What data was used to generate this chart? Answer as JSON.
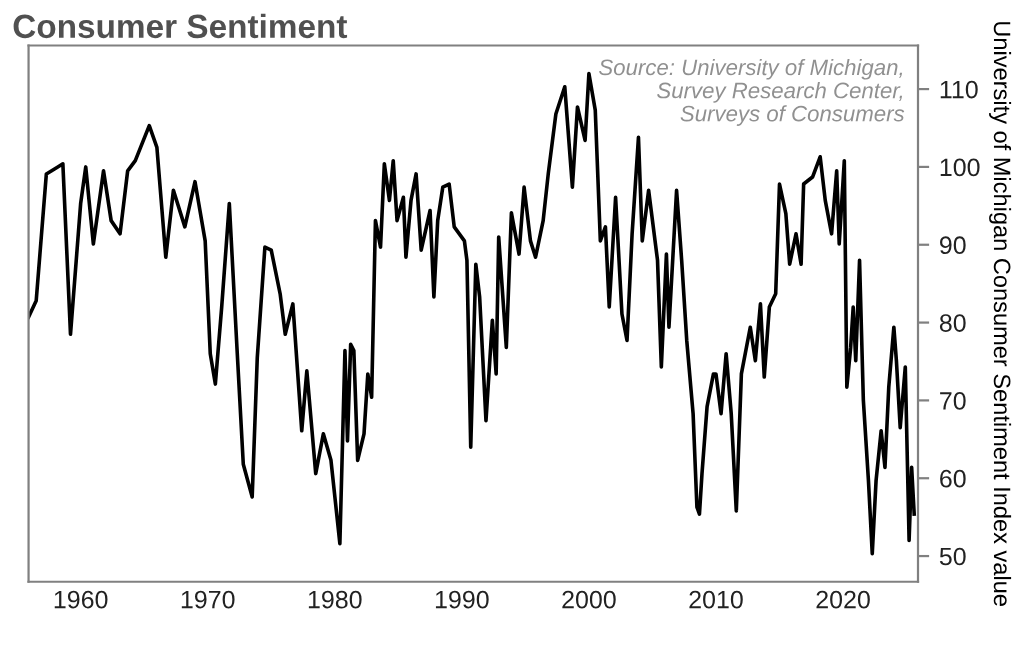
{
  "chart_data": {
    "type": "line",
    "title": "Consumer Sentiment",
    "ylabel": "University of Michigan Consumer Sentiment Index value",
    "annotations": [
      "Source: University of Michigan,\nSurvey Research Center,\nSurveys of Consumers"
    ],
    "x": [
      1955.9,
      1956.5,
      1957.3,
      1958.2,
      1958.6,
      1959.2,
      1960,
      1960.4,
      1961,
      1961.8,
      1962.4,
      1963.1,
      1963.7,
      1964.3,
      1965.4,
      1966,
      1966.7,
      1967.3,
      1968.2,
      1969,
      1969.8,
      1970.2,
      1970.6,
      1971.1,
      1971.7,
      1972.3,
      1972.8,
      1973.5,
      1973.9,
      1974.5,
      1975,
      1975.7,
      1976.1,
      1976.7,
      1977.4,
      1977.8,
      1978.5,
      1979.1,
      1979.7,
      1980.4,
      1980.8,
      1981,
      1981.25,
      1981.5,
      1981.8,
      1982.3,
      1982.6,
      1982.9,
      1983.2,
      1983.6,
      1983.9,
      1984.3,
      1984.6,
      1984.9,
      1985.4,
      1985.6,
      1986,
      1986.4,
      1986.8,
      1987.5,
      1987.8,
      1988.1,
      1988.5,
      1989,
      1989.4,
      1989.8,
      1990.2,
      1990.4,
      1990.7,
      1991.1,
      1991.4,
      1991.9,
      1992.4,
      1992.7,
      1992.9,
      1993.5,
      1993.9,
      1994.5,
      1994.9,
      1995.4,
      1995.8,
      1996.4,
      1996.8,
      1997.4,
      1998.1,
      1998.7,
      1999.1,
      1999.7,
      2000,
      2000.5,
      2000.9,
      2001.3,
      2001.6,
      2002.1,
      2002.6,
      2003,
      2003.4,
      2003.9,
      2004.2,
      2004.7,
      2005.4,
      2005.7,
      2006.1,
      2006.3,
      2006.9,
      2007.3,
      2007.7,
      2008.2,
      2008.5,
      2008.7,
      2008.9,
      2009.3,
      2009.8,
      2010,
      2010.4,
      2010.8,
      2011.2,
      2011.6,
      2012,
      2012.7,
      2013.1,
      2013.5,
      2013.8,
      2014.2,
      2014.7,
      2015,
      2015.5,
      2015.8,
      2016.3,
      2016.7,
      2016.9,
      2017.6,
      2018.2,
      2018.6,
      2019.1,
      2019.5,
      2019.7,
      2020.1,
      2020.3,
      2020.6,
      2020.8,
      2021,
      2021.3,
      2021.6,
      2022,
      2022.3,
      2022.6,
      2023,
      2023.3,
      2023.6,
      2024,
      2024.2,
      2024.5,
      2024.9,
      2025.2,
      2025.4,
      2025.6
    ],
    "series": [
      {
        "color": "#000000",
        "values": [
          80.7,
          82.8,
          99.1,
          100,
          100.4,
          78.5,
          95.3,
          100,
          90.1,
          99.5,
          93.1,
          91.4,
          99.5,
          100.8,
          105.3,
          102.5,
          88.4,
          97,
          92.3,
          98.1,
          90.5,
          76,
          72.1,
          82,
          95.3,
          76.8,
          61.8,
          57.6,
          75.5,
          89.7,
          89.3,
          83.7,
          78.5,
          82.4,
          66.1,
          73.8,
          60.6,
          65.7,
          62.3,
          51.6,
          76.4,
          64.8,
          77.2,
          76.4,
          62.3,
          65.7,
          73.4,
          70.4,
          93.1,
          89.7,
          100.4,
          95.7,
          100.8,
          93.1,
          96.1,
          88.4,
          95.7,
          99.1,
          89.3,
          94.4,
          83.3,
          93.1,
          97.4,
          97.8,
          92.3,
          91.4,
          90.5,
          88,
          64,
          87.5,
          83.3,
          67.4,
          80.3,
          73.4,
          91,
          76.8,
          94.1,
          88.8,
          97.4,
          90.5,
          88.4,
          93.1,
          99.1,
          106.8,
          110.3,
          97.4,
          107.7,
          103.4,
          112,
          107.3,
          90.5,
          92.3,
          82,
          96.1,
          81.1,
          77.7,
          91.4,
          103.8,
          90.5,
          97,
          88,
          74.3,
          88.8,
          79.4,
          97,
          88,
          77.7,
          68.3,
          56.3,
          55.4,
          60.6,
          69.2,
          73.4,
          73.4,
          68.3,
          76,
          68.3,
          55.8,
          73.4,
          79.4,
          75.1,
          82.4,
          73,
          82,
          83.7,
          97.8,
          94,
          87.5,
          91.4,
          87.5,
          97.8,
          98.7,
          101.3,
          95.7,
          91.4,
          99.5,
          90.1,
          100.8,
          71.7,
          76.8,
          82,
          75.1,
          88,
          70,
          59.7,
          50.3,
          59.7,
          66.1,
          61.4,
          71.7,
          79.4,
          75.1,
          66.5,
          74.3,
          52,
          61.4,
          55.4
        ]
      }
    ],
    "xlim": [
      1955.9,
      2025.9
    ],
    "xticks": [
      1960,
      1970,
      1980,
      1990,
      2000,
      2010,
      2020
    ],
    "ylim": [
      46.7,
      115.6
    ],
    "yticks": [
      50,
      60,
      70,
      80,
      90,
      100,
      110
    ],
    "grid": false,
    "legend": false,
    "marker": "none",
    "line_style": "solid"
  }
}
